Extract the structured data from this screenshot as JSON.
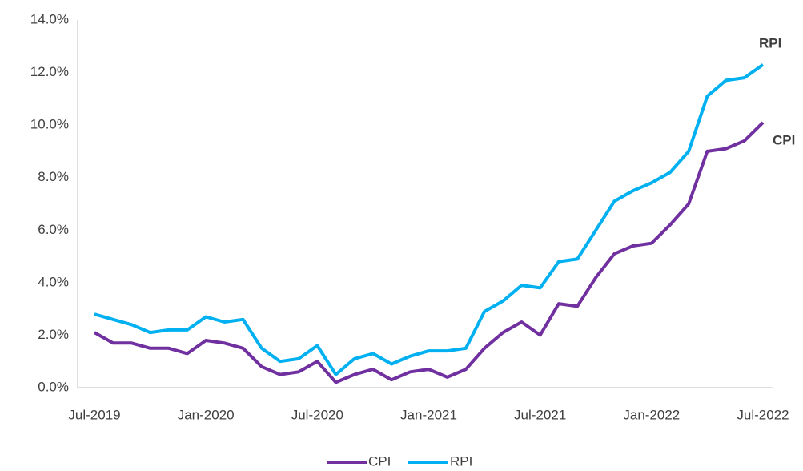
{
  "chart_data": {
    "type": "line",
    "categories": [
      "Jul-2019",
      null,
      null,
      null,
      null,
      null,
      "Jan-2020",
      null,
      null,
      null,
      null,
      null,
      "Jul-2020",
      null,
      null,
      null,
      null,
      null,
      "Jan-2021",
      null,
      null,
      null,
      null,
      null,
      "Jul-2021",
      null,
      null,
      null,
      null,
      null,
      "Jan-2022",
      null,
      null,
      null,
      null,
      null,
      "Jul-2022"
    ],
    "series": [
      {
        "name": "CPI",
        "color": "#7030a0",
        "values": [
          2.1,
          1.7,
          1.7,
          1.5,
          1.5,
          1.3,
          1.8,
          1.7,
          1.5,
          0.8,
          0.5,
          0.6,
          1.0,
          0.2,
          0.5,
          0.7,
          0.3,
          0.6,
          0.7,
          0.4,
          0.7,
          1.5,
          2.1,
          2.5,
          2.0,
          3.2,
          3.1,
          4.2,
          5.1,
          5.4,
          5.5,
          6.2,
          7.0,
          9.0,
          9.1,
          9.4,
          10.1
        ]
      },
      {
        "name": "RPI",
        "color": "#00b0f0",
        "values": [
          2.8,
          2.6,
          2.4,
          2.1,
          2.2,
          2.2,
          2.7,
          2.5,
          2.6,
          1.5,
          1.0,
          1.1,
          1.6,
          0.5,
          1.1,
          1.3,
          0.9,
          1.2,
          1.4,
          1.4,
          1.5,
          2.9,
          3.3,
          3.9,
          3.8,
          4.8,
          4.9,
          6.0,
          7.1,
          7.5,
          7.8,
          8.2,
          9.0,
          11.1,
          11.7,
          11.8,
          12.3
        ]
      }
    ],
    "annotations": [
      "RPI",
      "CPI"
    ],
    "ylim": [
      0,
      14
    ],
    "yticks": [
      {
        "value": 0,
        "label": "0.0%"
      },
      {
        "value": 2,
        "label": "2.0%"
      },
      {
        "value": 4,
        "label": "4.0%"
      },
      {
        "value": 6,
        "label": "6.0%"
      },
      {
        "value": 8,
        "label": "8.0%"
      },
      {
        "value": 10,
        "label": "10.0%"
      },
      {
        "value": 12,
        "label": "12.0%"
      },
      {
        "value": 14,
        "label": "14.0%"
      }
    ],
    "grid": false,
    "legend": "bottom"
  }
}
